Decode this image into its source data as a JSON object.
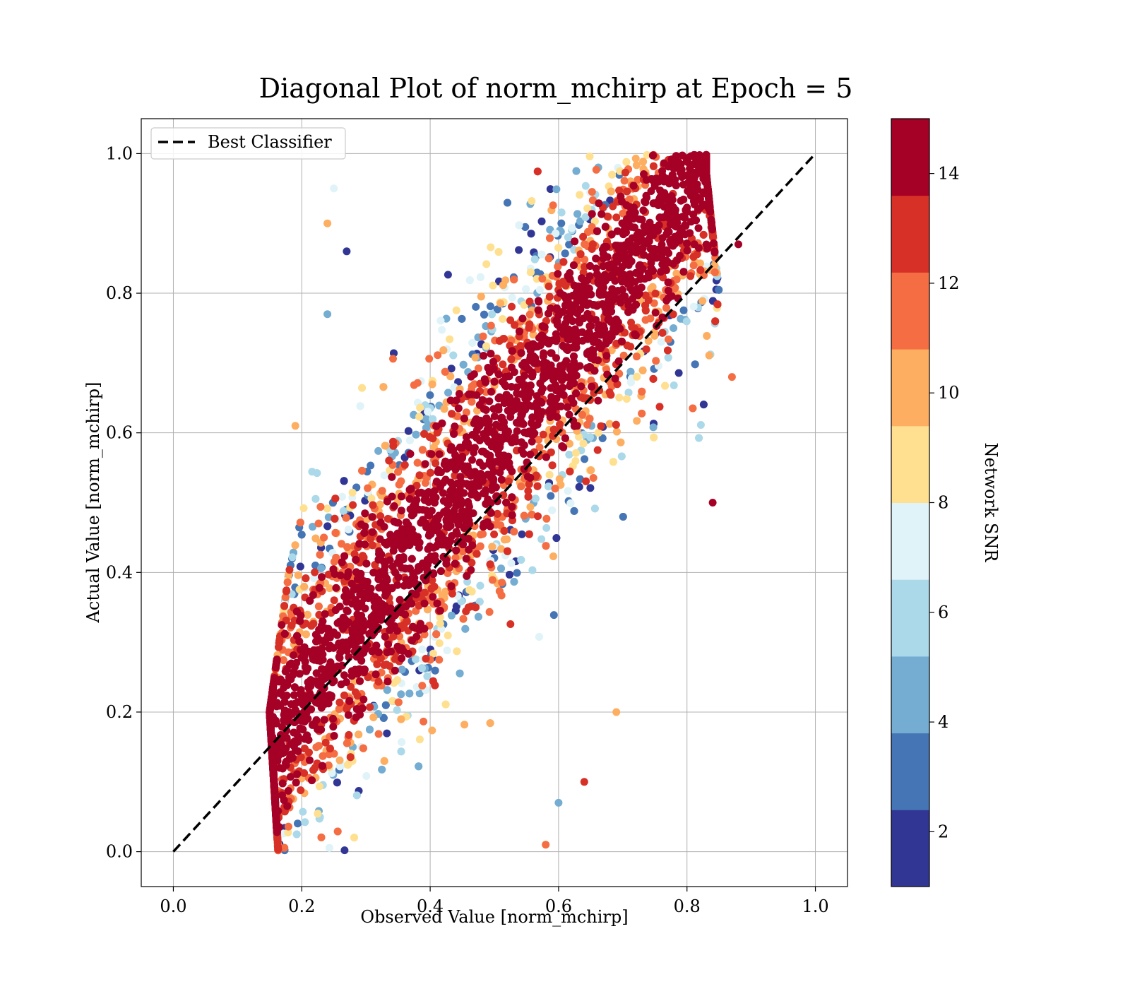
{
  "chart_data": {
    "type": "scatter",
    "title": "Diagonal Plot of norm_mchirp at Epoch = 5",
    "xlabel": "Observed Value [norm_mchirp]",
    "ylabel": "Actual Value [norm_mchirp]",
    "xlim": [
      -0.05,
      1.05
    ],
    "ylim": [
      -0.05,
      1.05
    ],
    "xticks": [
      "0.0",
      "0.2",
      "0.4",
      "0.6",
      "0.8",
      "1.0"
    ],
    "yticks": [
      "0.0",
      "0.2",
      "0.4",
      "0.6",
      "0.8",
      "1.0"
    ],
    "grid": true,
    "legend": {
      "location": "upper-left",
      "entries": [
        {
          "label": "Best Classifier",
          "style": "black dashed line"
        }
      ]
    },
    "reference_line": {
      "name": "Best Classifier",
      "x": [
        0.0,
        1.0
      ],
      "y": [
        0.0,
        1.0
      ],
      "color": "#000000"
    },
    "colorbar": {
      "label": "Network SNR",
      "range": [
        1,
        15
      ],
      "ticks": [
        "2",
        "4",
        "6",
        "8",
        "10",
        "12",
        "14"
      ],
      "colors": [
        "#313695",
        "#4575b4",
        "#74add1",
        "#abd9e9",
        "#e0f3f8",
        "#fee090",
        "#fdae61",
        "#f46d43",
        "#d73027",
        "#a50026"
      ],
      "levels": 10
    },
    "point_cloud": {
      "description_scope": "dense scatter along diagonal; low SNR points spread above-left (upper) and below-right (lower) of the high SNR band",
      "x_range": [
        0.14,
        0.88
      ],
      "y_range": [
        0.0,
        1.0
      ],
      "band": [
        {
          "y": 0.05,
          "x_min": 0.16,
          "x_max": 0.55
        },
        {
          "y": 0.2,
          "x_min": 0.15,
          "x_max": 0.63
        },
        {
          "y": 0.4,
          "x_min": 0.18,
          "x_max": 0.78
        },
        {
          "y": 0.6,
          "x_min": 0.23,
          "x_max": 0.82
        },
        {
          "y": 0.8,
          "x_min": 0.27,
          "x_max": 0.85
        },
        {
          "y": 0.97,
          "x_min": 0.33,
          "x_max": 0.83
        }
      ],
      "sample_points": [
        {
          "x": 0.27,
          "y": 0.86,
          "snr": 1.5
        },
        {
          "x": 0.24,
          "y": 0.77,
          "snr": 4.5
        },
        {
          "x": 0.84,
          "y": 0.5,
          "snr": 14.5
        },
        {
          "x": 0.88,
          "y": 0.87,
          "snr": 14.5
        },
        {
          "x": 0.87,
          "y": 0.68,
          "snr": 11.5
        },
        {
          "x": 0.6,
          "y": 0.07,
          "snr": 4.5
        },
        {
          "x": 0.58,
          "y": 0.01,
          "snr": 11.5
        },
        {
          "x": 0.64,
          "y": 0.1,
          "snr": 12.5
        },
        {
          "x": 0.25,
          "y": 0.95,
          "snr": 7.5
        },
        {
          "x": 0.24,
          "y": 0.9,
          "snr": 10.5
        },
        {
          "x": 0.19,
          "y": 0.61,
          "snr": 9.5
        },
        {
          "x": 0.69,
          "y": 0.2,
          "snr": 9.5
        }
      ]
    }
  }
}
